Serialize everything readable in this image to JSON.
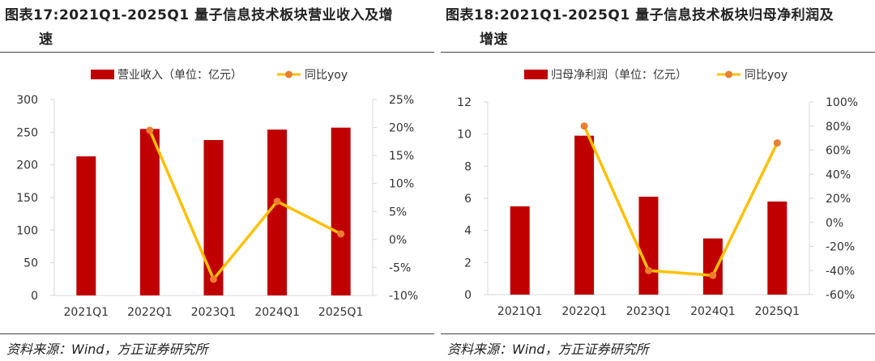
{
  "figures": [
    {
      "title_line1": "图表17:2021Q1-2025Q1 量子信息技术板块营业收入及增",
      "title_line2": "速",
      "source": "资料来源：Wind，方正证券研究所",
      "legend_bar": "营业收入（单位：亿元）",
      "legend_line": "同比yoy"
    },
    {
      "title_line1": "图表18:2021Q1-2025Q1 量子信息技术板块归母净利润及",
      "title_line2": "增速",
      "source": "资料来源：Wind，方正证券研究所",
      "legend_bar": "归母净利润（单位：亿元）",
      "legend_line": "同比yoy"
    }
  ],
  "colors": {
    "bar": "#c00000",
    "line": "#ffc000",
    "marker": "#ed7d31",
    "grid_axis": "#d9d9d9"
  },
  "chart_data": [
    {
      "type": "bar",
      "categories": [
        "2021Q1",
        "2022Q1",
        "2023Q1",
        "2024Q1",
        "2025Q1"
      ],
      "series": [
        {
          "name": "营业收入（单位：亿元）",
          "type": "bar",
          "axis": "left",
          "values": [
            213,
            255,
            238,
            254,
            257
          ]
        },
        {
          "name": "同比yoy",
          "type": "line",
          "axis": "right",
          "values": [
            null,
            19.5,
            -7.1,
            6.8,
            1.0
          ]
        }
      ],
      "y_left": {
        "min": 0,
        "max": 300,
        "step": 50,
        "ticks": [
          "0",
          "50",
          "100",
          "150",
          "200",
          "250",
          "300"
        ]
      },
      "y_right": {
        "min": -10,
        "max": 25,
        "step": 5,
        "ticks": [
          "-10%",
          "-5%",
          "0%",
          "5%",
          "10%",
          "15%",
          "20%",
          "25%"
        ]
      },
      "legend_position": "top",
      "grid": false
    },
    {
      "type": "bar",
      "categories": [
        "2021Q1",
        "2022Q1",
        "2023Q1",
        "2024Q1",
        "2025Q1"
      ],
      "series": [
        {
          "name": "归母净利润（单位：亿元）",
          "type": "bar",
          "axis": "left",
          "values": [
            5.5,
            9.9,
            6.1,
            3.5,
            5.8
          ]
        },
        {
          "name": "同比yoy",
          "type": "line",
          "axis": "right",
          "values": [
            null,
            80,
            -40,
            -44,
            66
          ]
        }
      ],
      "y_left": {
        "min": 0,
        "max": 12,
        "step": 2,
        "ticks": [
          "0",
          "2",
          "4",
          "6",
          "8",
          "10",
          "12"
        ]
      },
      "y_right": {
        "min": -60,
        "max": 100,
        "step": 20,
        "ticks": [
          "-60%",
          "-40%",
          "-20%",
          "0%",
          "20%",
          "40%",
          "60%",
          "80%",
          "100%"
        ]
      },
      "legend_position": "top",
      "grid": false
    }
  ]
}
